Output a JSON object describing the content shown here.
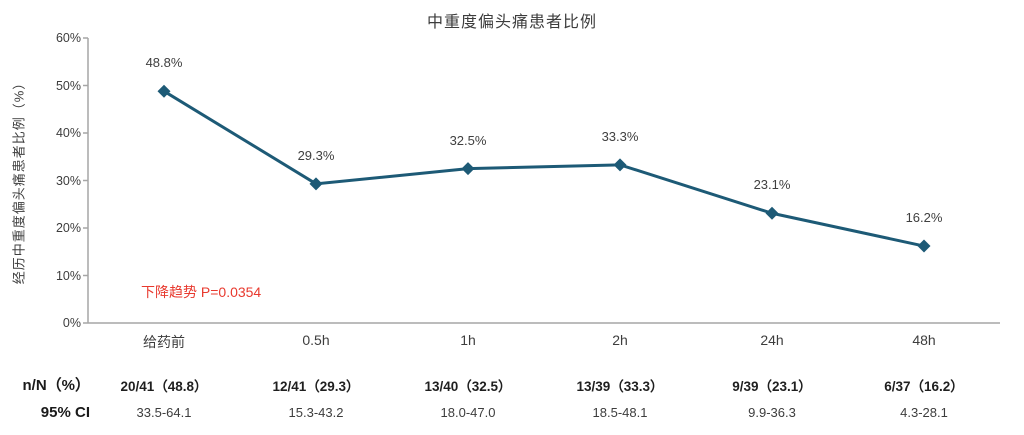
{
  "chart_data": {
    "type": "line",
    "title": "中重度偏头痛患者比例",
    "xlabel": "",
    "ylabel": "经历中重度偏头痛患者比例（%）",
    "categories": [
      "给药前",
      "0.5h",
      "1h",
      "2h",
      "24h",
      "48h"
    ],
    "values": [
      48.8,
      29.3,
      32.5,
      33.3,
      23.1,
      16.2
    ],
    "point_labels": [
      "48.8%",
      "29.3%",
      "32.5%",
      "33.3%",
      "23.1%",
      "16.2%"
    ],
    "ylim": [
      0,
      60
    ],
    "ytick_step": 10,
    "ytick_labels": [
      "0%",
      "10%",
      "20%",
      "30%",
      "40%",
      "50%",
      "60%"
    ],
    "grid": false,
    "legend": null,
    "line_color": "#1d5a76",
    "axis_color": "#a6a6a6",
    "annotation": {
      "text": "下降趋势 P=0.0354",
      "color": "#e8392e"
    }
  },
  "table": {
    "rows": [
      {
        "label": "n/N（%）",
        "bold": true,
        "values": [
          "20/41（48.8）",
          "12/41（29.3）",
          "13/40（32.5）",
          "13/39（33.3）",
          "9/39（23.1）",
          "6/37（16.2）"
        ]
      },
      {
        "label": "95% CI",
        "bold": false,
        "values": [
          "33.5-64.1",
          "15.3-43.2",
          "18.0-47.0",
          "18.5-48.1",
          "9.9-36.3",
          "4.3-28.1"
        ]
      }
    ]
  }
}
